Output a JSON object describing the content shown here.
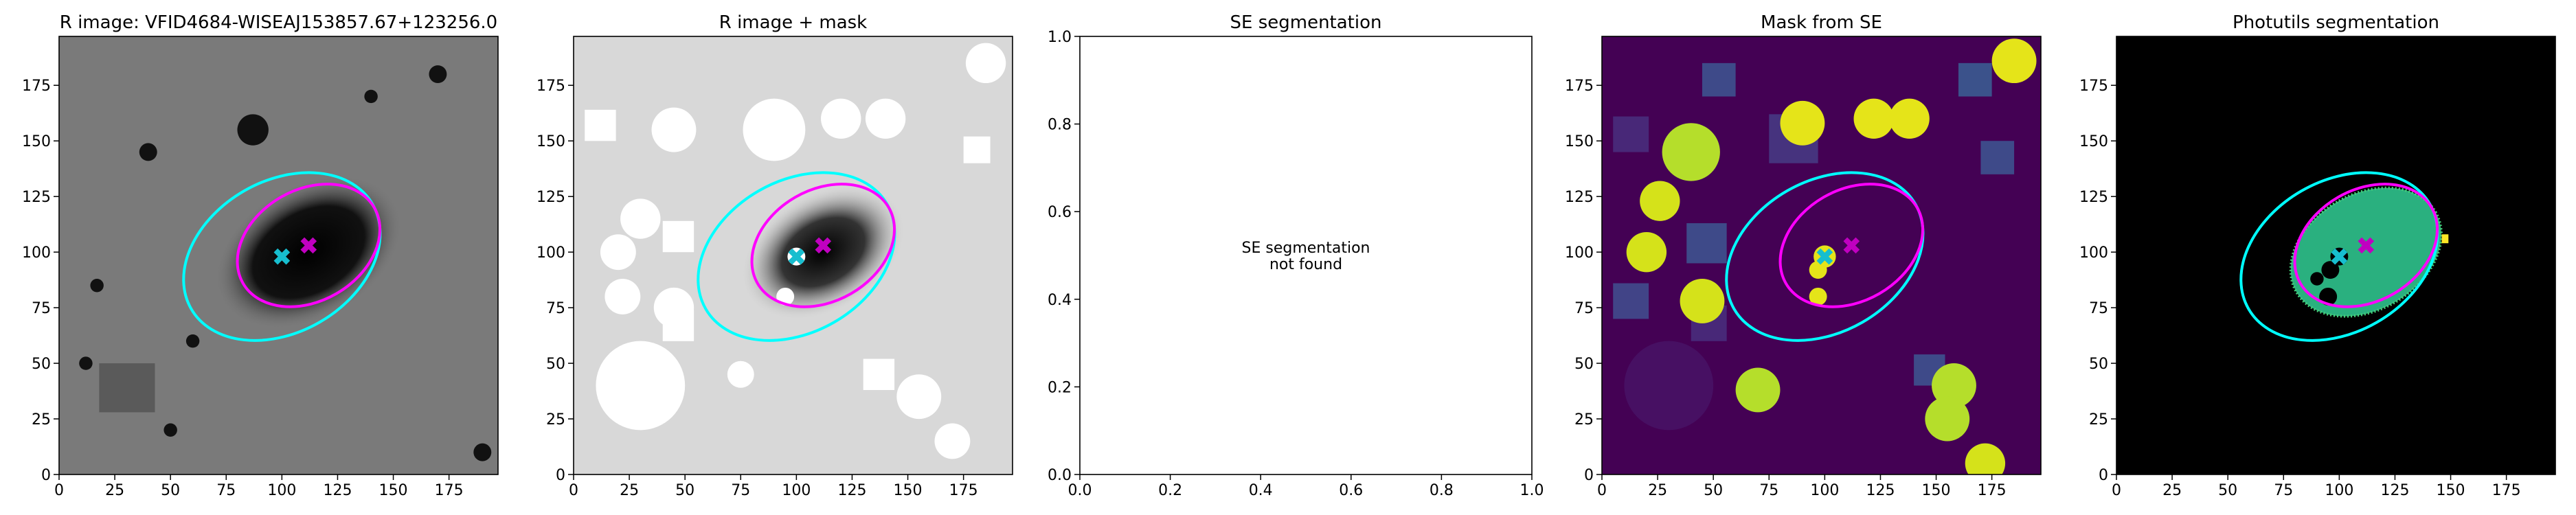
{
  "chart_data": [
    {
      "type": "image",
      "title": "R image: VFID4684-WISEAJ153857.67+123256.0",
      "xlim": [
        0,
        197
      ],
      "ylim": [
        0,
        197
      ],
      "xticks": [
        0,
        25,
        50,
        75,
        100,
        125,
        150,
        175
      ],
      "yticks": [
        0,
        25,
        50,
        75,
        100,
        125,
        150,
        175
      ],
      "markers": [
        {
          "color": "#17becf",
          "x": 100,
          "y": 98
        },
        {
          "color": "#c000c0",
          "x": 112,
          "y": 103
        }
      ],
      "ellipses": [
        {
          "color": "cyan",
          "x": 100,
          "y": 98,
          "a": 47,
          "b": 34,
          "angle": 30
        },
        {
          "color": "magenta",
          "x": 112,
          "y": 103,
          "a": 34,
          "b": 25,
          "angle": 30
        }
      ]
    },
    {
      "type": "image",
      "title": "R image + mask",
      "xlim": [
        0,
        197
      ],
      "ylim": [
        0,
        197
      ],
      "xticks": [
        0,
        25,
        50,
        75,
        100,
        125,
        150,
        175
      ],
      "yticks": [
        0,
        25,
        50,
        75,
        100,
        125,
        150,
        175
      ],
      "markers": [
        {
          "color": "#17becf",
          "x": 100,
          "y": 98
        },
        {
          "color": "#c000c0",
          "x": 112,
          "y": 103
        }
      ],
      "ellipses": [
        {
          "color": "cyan",
          "x": 100,
          "y": 98,
          "a": 47,
          "b": 34,
          "angle": 30
        },
        {
          "color": "magenta",
          "x": 112,
          "y": 103,
          "a": 34,
          "b": 25,
          "angle": 30
        }
      ]
    },
    {
      "type": "empty",
      "title": "SE segmentation",
      "xlim": [
        0,
        1
      ],
      "ylim": [
        0,
        1
      ],
      "xticks": [
        {
          "value": 0,
          "label": "0.0"
        },
        {
          "value": 0.2,
          "label": "0.2"
        },
        {
          "value": 0.4,
          "label": "0.4"
        },
        {
          "value": 0.6,
          "label": "0.6"
        },
        {
          "value": 0.8,
          "label": "0.8"
        },
        {
          "value": 1,
          "label": "1.0"
        }
      ],
      "yticks": [
        {
          "value": 0,
          "label": "0.0"
        },
        {
          "value": 0.2,
          "label": "0.2"
        },
        {
          "value": 0.4,
          "label": "0.4"
        },
        {
          "value": 0.6,
          "label": "0.6"
        },
        {
          "value": 0.8,
          "label": "0.8"
        },
        {
          "value": 1,
          "label": "1.0"
        }
      ],
      "annotation": [
        "SE segmentation",
        "not found"
      ]
    },
    {
      "type": "image",
      "title": "Mask from SE",
      "xlim": [
        0,
        197
      ],
      "ylim": [
        0,
        197
      ],
      "xticks": [
        0,
        25,
        50,
        75,
        100,
        125,
        150,
        175
      ],
      "yticks": [
        0,
        25,
        50,
        75,
        100,
        125,
        150,
        175
      ],
      "markers": [
        {
          "color": "#17becf",
          "x": 100,
          "y": 98
        },
        {
          "color": "#c000c0",
          "x": 112,
          "y": 103
        }
      ],
      "ellipses": [
        {
          "color": "cyan",
          "x": 100,
          "y": 98,
          "a": 47,
          "b": 34,
          "angle": 30
        },
        {
          "color": "magenta",
          "x": 112,
          "y": 103,
          "a": 34,
          "b": 25,
          "angle": 30
        }
      ]
    },
    {
      "type": "image",
      "title": "Photutils segmentation",
      "xlim": [
        0,
        197
      ],
      "ylim": [
        0,
        197
      ],
      "xticks": [
        0,
        25,
        50,
        75,
        100,
        125,
        150,
        175
      ],
      "yticks": [
        0,
        25,
        50,
        75,
        100,
        125,
        150,
        175
      ],
      "markers": [
        {
          "color": "#17becf",
          "x": 100,
          "y": 98
        },
        {
          "color": "#c000c0",
          "x": 112,
          "y": 103
        }
      ],
      "ellipses": [
        {
          "color": "cyan",
          "x": 100,
          "y": 98,
          "a": 47,
          "b": 34,
          "angle": 30
        },
        {
          "color": "magenta",
          "x": 112,
          "y": 103,
          "a": 34,
          "b": 25,
          "angle": 30
        }
      ]
    }
  ]
}
